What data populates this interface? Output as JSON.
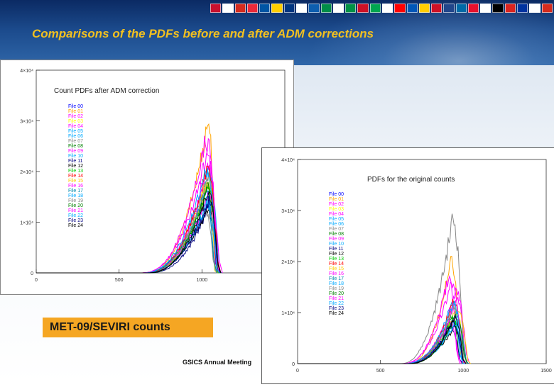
{
  "slide": {
    "title": "Comparisons of the PDFs before and after ADM corrections",
    "badge_label": "MET-09/SEVIRI counts",
    "footer": "GSICS Annual Meeting"
  },
  "flags": [
    "#c8102e",
    "#ffffff",
    "#d52b1e",
    "#ed2939",
    "#0055a4",
    "#ffce00",
    "#003580",
    "#ffffff",
    "#0d5eaf",
    "#008d48",
    "#ffffff",
    "#009246",
    "#ce1126",
    "#00a650",
    "#ffffff",
    "#ff0000",
    "#0057b8",
    "#ffcd00",
    "#ce1126",
    "#21468b",
    "#006aa7",
    "#e8112d",
    "#ffffff",
    "#000000",
    "#dc241f",
    "#0033a0",
    "#ffffff",
    "#d52b1e"
  ],
  "series_colors": [
    "#0000ff",
    "#ffa500",
    "#ff00ff",
    "#ffff00",
    "#ff00ff",
    "#00aaff",
    "#00aaff",
    "#888888",
    "#008000",
    "#ff00ff",
    "#00aaff",
    "#000080",
    "#000000",
    "#00cc00",
    "#ff0000",
    "#ffcc00",
    "#ff00ff",
    "#0088aa",
    "#00aaff",
    "#888888",
    "#008000",
    "#ff00ff",
    "#00aaff",
    "#000080",
    "#000000"
  ],
  "chart_data": [
    {
      "type": "line",
      "title": "Count PDFs after ADM correction",
      "xlabel": "",
      "ylabel": "",
      "xlim": [
        0,
        1500
      ],
      "ylim": [
        0,
        40000
      ],
      "x_ticks": [
        "0",
        "500",
        "1000"
      ],
      "y_ticks": [
        "0",
        "1×10⁴",
        "2×10⁴",
        "3×10⁴",
        "4×10⁴"
      ],
      "legend": [
        "File 00",
        "File 01",
        "File 02",
        "File 03",
        "File 04",
        "File 05",
        "File 06",
        "File 07",
        "File 08",
        "File 09",
        "File 10",
        "File 11",
        "File 12",
        "File 13",
        "File 14",
        "File 15",
        "File 16",
        "File 17",
        "File 18",
        "File 19",
        "File 20",
        "File 21",
        "File 22",
        "File 23",
        "File 24"
      ],
      "legend_position": "upper-left",
      "peaks": [
        16000,
        30000,
        22000,
        18000,
        26000,
        14000,
        20000,
        12000,
        17000,
        22000,
        15000,
        13000,
        12500,
        17500,
        21000,
        18500,
        15500,
        16500,
        13500,
        19500,
        17000,
        25000,
        20500,
        14500,
        16000
      ],
      "peak_x": [
        1025,
        1035,
        1035,
        1045,
        1020,
        1030,
        1040,
        1025,
        1035,
        1045,
        1030,
        1040,
        1030,
        1045,
        1035,
        1030,
        1045,
        1025,
        1030,
        1040,
        1030,
        1040,
        1025,
        1045,
        1035
      ]
    },
    {
      "type": "line",
      "title": "PDFs for the original counts",
      "xlabel": "",
      "ylabel": "",
      "xlim": [
        0,
        1500
      ],
      "ylim": [
        0,
        40000
      ],
      "x_ticks": [
        "0",
        "500",
        "1000",
        "1500"
      ],
      "y_ticks": [
        "0",
        "1×10⁴",
        "2×10⁴",
        "3×10⁴",
        "4×10⁴"
      ],
      "legend": [
        "File 00",
        "File 01",
        "File 02",
        "File 03",
        "File 04",
        "File 05",
        "File 06",
        "File 07",
        "File 08",
        "File 09",
        "File 10",
        "File 11",
        "File 12",
        "File 13",
        "File 14",
        "File 15",
        "File 16",
        "File 17",
        "File 18",
        "File 19",
        "File 20",
        "File 21",
        "File 22",
        "File 23",
        "File 24"
      ],
      "legend_position": "upper-left",
      "peaks": [
        8500,
        20000,
        13000,
        10000,
        17000,
        8000,
        12000,
        28500,
        9500,
        14000,
        8800,
        7500,
        7200,
        9000,
        12500,
        10500,
        8300,
        9200,
        7800,
        11000,
        9800,
        16000,
        12000,
        8200,
        9000
      ],
      "peak_x": [
        940,
        920,
        960,
        950,
        910,
        945,
        930,
        935,
        925,
        955,
        940,
        915,
        945,
        930,
        940,
        960,
        920,
        950,
        945,
        935,
        955,
        925,
        940,
        930,
        945
      ]
    }
  ]
}
